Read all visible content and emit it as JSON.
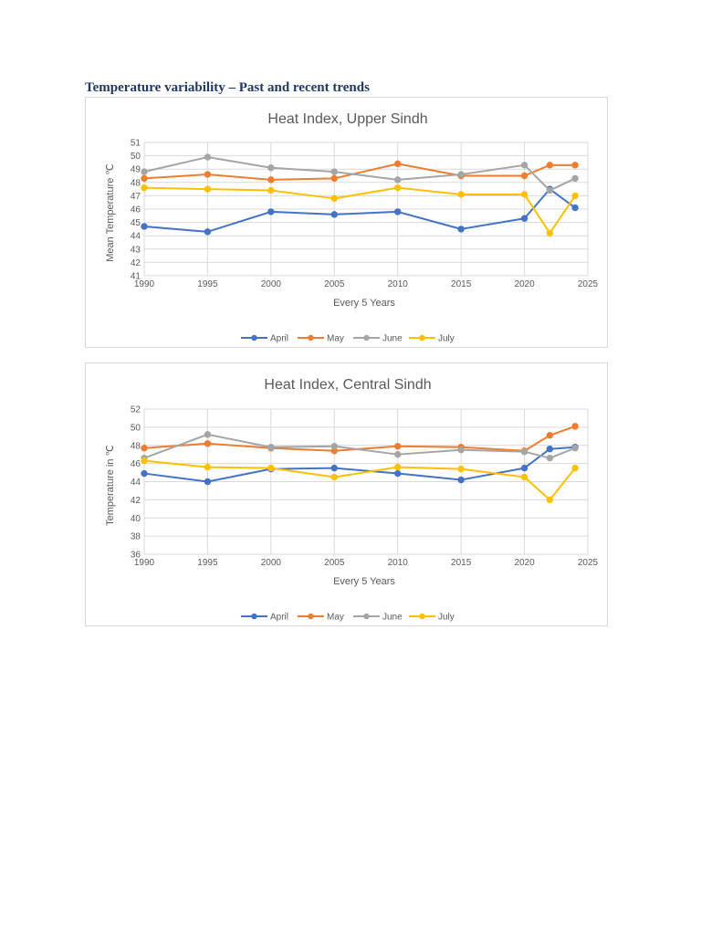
{
  "page": {
    "heading": "Temperature variability – Past and recent trends"
  },
  "colors": {
    "April": "#4472c4",
    "May": "#ed7d31",
    "June": "#a5a5a5",
    "July": "#ffc000"
  },
  "chart_data": [
    {
      "type": "line",
      "title": "Heat Index, Upper Sindh",
      "xlabel": "Every 5 Years",
      "ylabel": "Mean Temperature ℃",
      "xlim": [
        1990,
        2025
      ],
      "ylim": [
        41,
        51
      ],
      "x_ticks": [
        1990,
        1995,
        2000,
        2005,
        2010,
        2015,
        2020,
        2025
      ],
      "y_ticks": [
        41,
        42,
        43,
        44,
        45,
        46,
        47,
        48,
        49,
        50,
        51
      ],
      "grid": true,
      "legend_position": "bottom",
      "x": [
        1990,
        1995,
        2000,
        2005,
        2010,
        2015,
        2020,
        2022,
        2024
      ],
      "series": [
        {
          "name": "April",
          "values": [
            44.7,
            44.3,
            45.8,
            45.6,
            45.8,
            44.5,
            45.3,
            47.5,
            46.1
          ]
        },
        {
          "name": "May",
          "values": [
            48.3,
            48.6,
            48.2,
            48.3,
            49.4,
            48.5,
            48.5,
            49.3,
            49.3
          ]
        },
        {
          "name": "June",
          "values": [
            48.8,
            49.9,
            49.1,
            48.8,
            48.2,
            48.6,
            49.3,
            47.4,
            48.3
          ]
        },
        {
          "name": "July",
          "values": [
            47.6,
            47.5,
            47.4,
            46.8,
            47.6,
            47.1,
            47.1,
            44.2,
            47.0
          ]
        }
      ]
    },
    {
      "type": "line",
      "title": "Heat Index, Central Sindh",
      "xlabel": "Every 5 Years",
      "ylabel": "Temperature in ℃",
      "xlim": [
        1990,
        2025
      ],
      "ylim": [
        36,
        52
      ],
      "x_ticks": [
        1990,
        1995,
        2000,
        2005,
        2010,
        2015,
        2020,
        2025
      ],
      "y_ticks": [
        36,
        38,
        40,
        42,
        44,
        46,
        48,
        50,
        52
      ],
      "grid": true,
      "legend_position": "bottom",
      "x": [
        1990,
        1995,
        2000,
        2005,
        2010,
        2015,
        2020,
        2022,
        2024
      ],
      "series": [
        {
          "name": "April",
          "values": [
            44.9,
            44.0,
            45.4,
            45.5,
            44.9,
            44.2,
            45.5,
            47.6,
            47.8
          ]
        },
        {
          "name": "May",
          "values": [
            47.7,
            48.2,
            47.7,
            47.4,
            47.9,
            47.8,
            47.4,
            49.1,
            50.1
          ]
        },
        {
          "name": "June",
          "values": [
            46.6,
            49.2,
            47.8,
            47.9,
            47.0,
            47.5,
            47.3,
            46.6,
            47.7
          ]
        },
        {
          "name": "July",
          "values": [
            46.3,
            45.6,
            45.5,
            44.5,
            45.6,
            45.4,
            44.5,
            42.0,
            45.5
          ]
        }
      ]
    }
  ]
}
